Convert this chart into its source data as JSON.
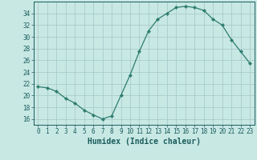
{
  "x": [
    0,
    1,
    2,
    3,
    4,
    5,
    6,
    7,
    8,
    9,
    10,
    11,
    12,
    13,
    14,
    15,
    16,
    17,
    18,
    19,
    20,
    21,
    22,
    23
  ],
  "y": [
    21.5,
    21.3,
    20.7,
    19.5,
    18.7,
    17.5,
    16.7,
    16.0,
    16.5,
    20.0,
    23.5,
    27.5,
    31.0,
    33.0,
    34.0,
    35.0,
    35.2,
    35.0,
    34.5,
    33.0,
    32.0,
    29.5,
    27.5,
    25.5
  ],
  "line_color": "#2e7d6e",
  "marker": "D",
  "marker_size": 2.2,
  "bg_color": "#c8e8e4",
  "grid_color": "#a8cccc",
  "xlabel": "Humidex (Indice chaleur)",
  "ylim": [
    15,
    36
  ],
  "xlim": [
    -0.5,
    23.5
  ],
  "yticks": [
    16,
    18,
    20,
    22,
    24,
    26,
    28,
    30,
    32,
    34
  ],
  "xticks": [
    0,
    1,
    2,
    3,
    4,
    5,
    6,
    7,
    8,
    9,
    10,
    11,
    12,
    13,
    14,
    15,
    16,
    17,
    18,
    19,
    20,
    21,
    22,
    23
  ],
  "font_color": "#1a5c5c",
  "tick_fontsize": 5.5,
  "label_fontsize": 7.0
}
